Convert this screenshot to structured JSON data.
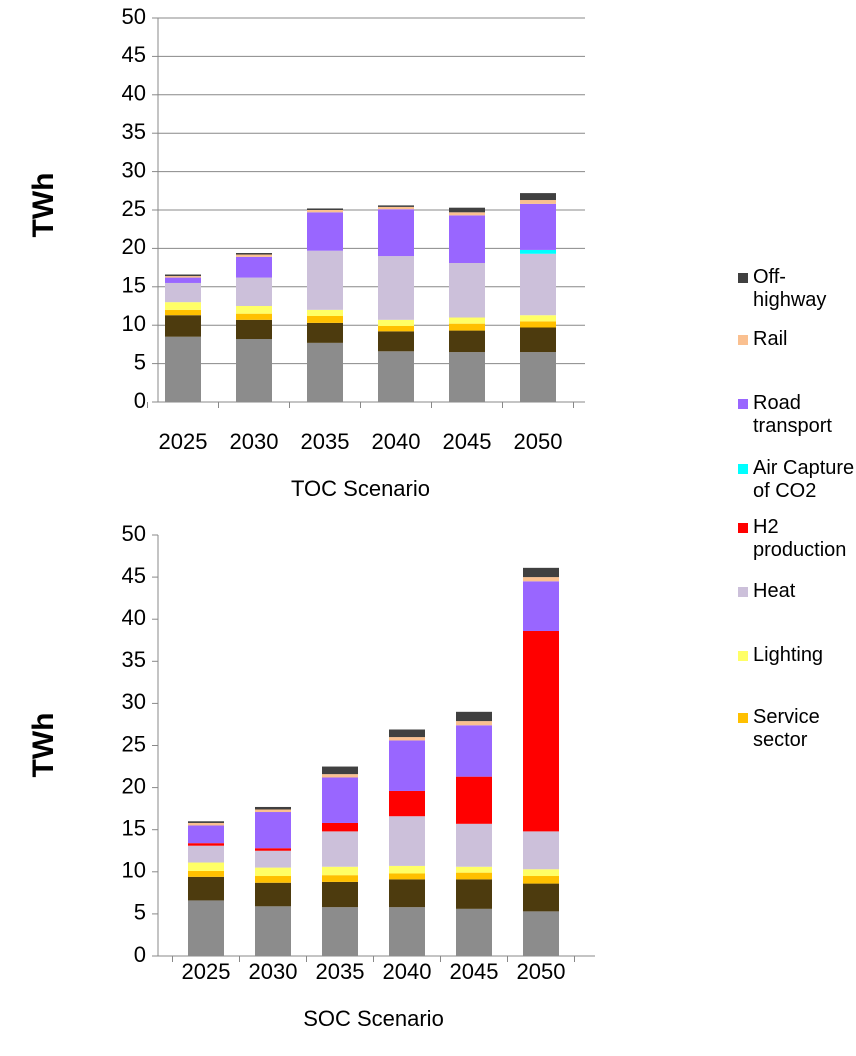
{
  "chart_data": [
    {
      "type": "bar",
      "stacked": true,
      "x_label": "TOC Scenario",
      "y_label": "TWh",
      "categories": [
        "2025",
        "2030",
        "2035",
        "2040",
        "2045",
        "2050"
      ],
      "ylim": [
        0,
        50
      ],
      "yticks": [
        0,
        5,
        10,
        15,
        20,
        25,
        30,
        35,
        40,
        45,
        50
      ],
      "grid": true,
      "series": [
        {
          "color": "#8c8c8c",
          "values": [
            8.5,
            8.2,
            7.7,
            6.6,
            6.5,
            6.5
          ]
        },
        {
          "color": "#4d3b0e",
          "values": [
            2.8,
            2.5,
            2.6,
            2.6,
            2.8,
            3.2
          ]
        },
        {
          "name": "Service sector",
          "color": "#ffc000",
          "values": [
            0.7,
            0.8,
            0.9,
            0.7,
            0.9,
            0.8
          ]
        },
        {
          "name": "Lighting",
          "color": "#ffff66",
          "values": [
            1.0,
            1.0,
            0.8,
            0.8,
            0.8,
            0.8
          ]
        },
        {
          "name": "Heat",
          "color": "#ccc0da",
          "values": [
            2.5,
            3.7,
            7.7,
            8.3,
            7.1,
            8.0
          ]
        },
        {
          "name": "H2 production",
          "color": "#ff0000",
          "values": [
            0,
            0,
            0,
            0,
            0,
            0
          ]
        },
        {
          "name": "Air Capture of CO2",
          "color": "#00ffff",
          "values": [
            0,
            0,
            0,
            0,
            0,
            0.5
          ]
        },
        {
          "name": "Road transport",
          "color": "#9966ff",
          "values": [
            0.7,
            2.7,
            5.0,
            6.1,
            6.2,
            6.0
          ]
        },
        {
          "name": "Rail",
          "color": "#fac090",
          "values": [
            0.2,
            0.3,
            0.3,
            0.3,
            0.4,
            0.5
          ]
        },
        {
          "name": "Off-highway",
          "color": "#404040",
          "values": [
            0.2,
            0.2,
            0.2,
            0.2,
            0.6,
            0.9
          ]
        }
      ]
    },
    {
      "type": "bar",
      "stacked": true,
      "x_label": "SOC Scenario",
      "y_label": "TWh",
      "categories": [
        "2025",
        "2030",
        "2035",
        "2040",
        "2045",
        "2050"
      ],
      "ylim": [
        0,
        50
      ],
      "yticks": [
        0,
        5,
        10,
        15,
        20,
        25,
        30,
        35,
        40,
        45,
        50
      ],
      "grid": false,
      "series": [
        {
          "color": "#8c8c8c",
          "values": [
            6.6,
            5.9,
            5.8,
            5.8,
            5.6,
            5.3
          ]
        },
        {
          "color": "#4d3b0e",
          "values": [
            2.8,
            2.8,
            3.0,
            3.3,
            3.5,
            3.3
          ]
        },
        {
          "color": "#ffc000",
          "values": [
            0.7,
            0.8,
            0.8,
            0.7,
            0.8,
            0.9
          ]
        },
        {
          "color": "#ffff66",
          "values": [
            1.0,
            1.0,
            1.0,
            0.9,
            0.7,
            0.8
          ]
        },
        {
          "color": "#ccc0da",
          "values": [
            2.0,
            2.0,
            4.2,
            5.9,
            5.1,
            4.5
          ]
        },
        {
          "color": "#ff0000",
          "values": [
            0.3,
            0.3,
            1.0,
            3.0,
            5.6,
            23.8
          ]
        },
        {
          "color": "#00ffff",
          "values": [
            0,
            0,
            0,
            0,
            0,
            0
          ]
        },
        {
          "color": "#9966ff",
          "values": [
            2.1,
            4.3,
            5.4,
            6.0,
            6.1,
            5.9
          ]
        },
        {
          "color": "#fac090",
          "values": [
            0.3,
            0.3,
            0.4,
            0.4,
            0.5,
            0.5
          ]
        },
        {
          "color": "#404040",
          "values": [
            0.2,
            0.3,
            0.9,
            0.9,
            1.1,
            1.1
          ]
        }
      ]
    }
  ]
}
